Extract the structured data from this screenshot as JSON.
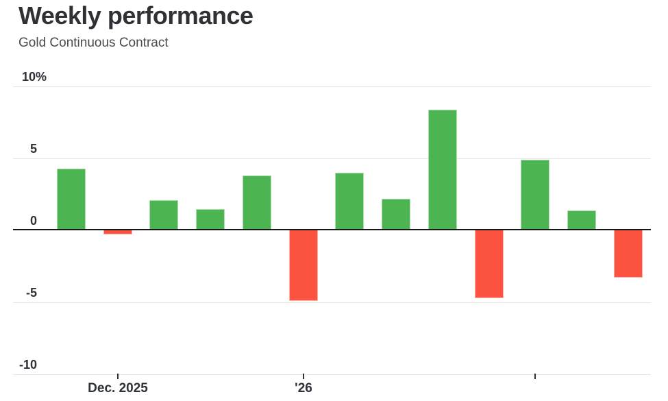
{
  "header": {
    "title": "Weekly performance",
    "subtitle": "Gold Continuous Contract"
  },
  "chart_data": {
    "type": "bar",
    "title": "Weekly performance",
    "subtitle": "Gold Continuous Contract",
    "unit": "%",
    "values": [
      4.2,
      -0.3,
      2.0,
      1.4,
      3.7,
      -4.9,
      3.9,
      2.1,
      8.3,
      -4.7,
      4.8,
      1.3,
      -3.3
    ],
    "ylim": [
      -10,
      10
    ],
    "yticks": [
      {
        "label": "10%",
        "value": 10
      },
      {
        "label": "5",
        "value": 5
      },
      {
        "label": "0",
        "value": 0
      },
      {
        "label": "-5",
        "value": -5
      },
      {
        "label": "-10",
        "value": -10
      }
    ],
    "xticks": [
      {
        "label": "Dec. 2025",
        "bar_index": 1
      },
      {
        "label": "'26",
        "bar_index": 5
      },
      {
        "label": "",
        "bar_index": 10
      }
    ],
    "grid": true,
    "legend": false,
    "positive_color": "#4cb450",
    "negative_color": "#fc5240",
    "zero_line_color": "#161616",
    "gridline_color": "#e6e6e6",
    "text_color": "#2e3138"
  }
}
